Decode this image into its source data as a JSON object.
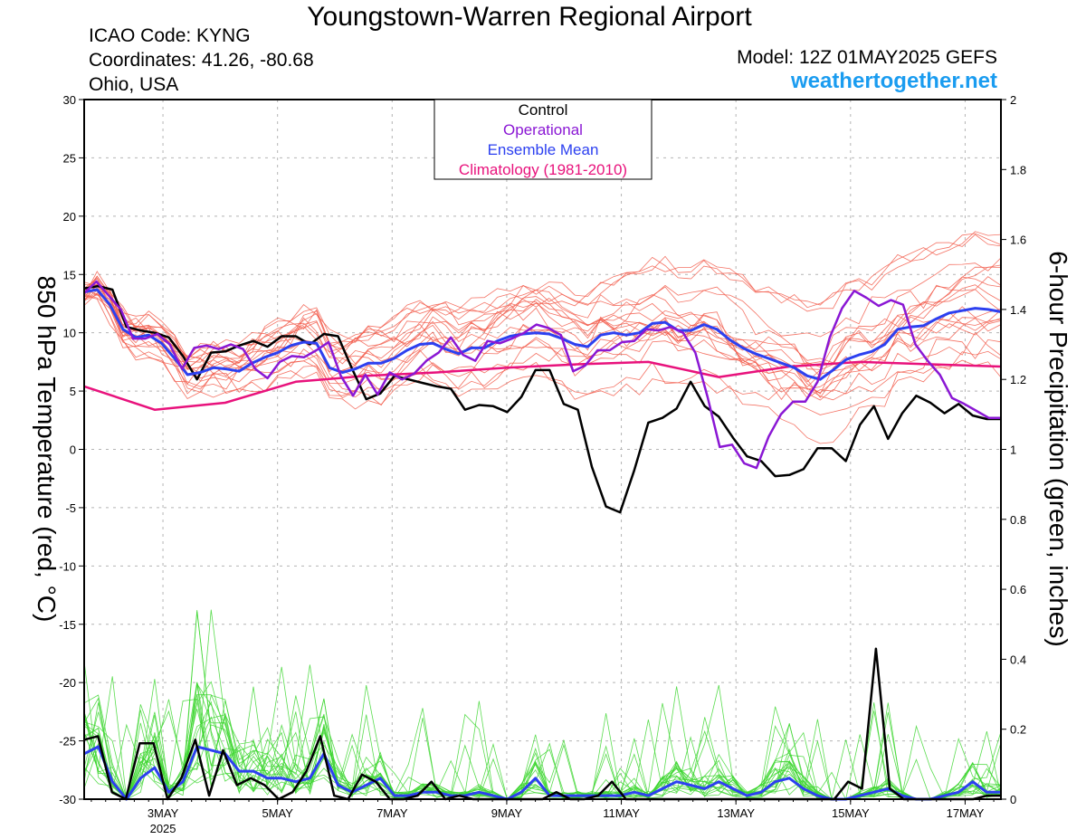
{
  "header": {
    "title": "Youngstown-Warren Regional Airport",
    "icao": "ICAO Code: KYNG",
    "coordinates": "Coordinates: 41.26, -80.68",
    "region": "Ohio, USA",
    "model": "Model: 12Z 01MAY2025 GEFS",
    "website": "weathertogether.net"
  },
  "chart_data": {
    "type": "line",
    "ylabel_left": "850 hPa Temperature (red, °C)",
    "ylabel_right": "6-hour Precipitation (green, inches)",
    "y_left_range": [
      -30,
      30
    ],
    "y_right_range": [
      0,
      2
    ],
    "y_left_ticks": [
      "30",
      "25",
      "20",
      "15",
      "10",
      "5",
      "0",
      "-5",
      "-10",
      "-15",
      "-20",
      "-25",
      "-30"
    ],
    "y_right_ticks": [
      "2",
      "1.8",
      "1.6",
      "1.4",
      "1.2",
      "1",
      "0.8",
      "0.6",
      "0.4",
      "0.2",
      "0"
    ],
    "x_range": [
      1.625,
      17.625
    ],
    "x_ticks": [
      {
        "x": 3,
        "label": "3MAY",
        "sub": "2025"
      },
      {
        "x": 5,
        "label": "5MAY",
        "sub": ""
      },
      {
        "x": 7,
        "label": "7MAY",
        "sub": ""
      },
      {
        "x": 9,
        "label": "9MAY",
        "sub": ""
      },
      {
        "x": 11,
        "label": "11MAY",
        "sub": ""
      },
      {
        "x": 13,
        "label": "13MAY",
        "sub": ""
      },
      {
        "x": 15,
        "label": "15MAY",
        "sub": ""
      },
      {
        "x": 17,
        "label": "17MAY",
        "sub": ""
      }
    ],
    "legend": [
      {
        "label": "Control",
        "color": "#000000"
      },
      {
        "label": "Operational",
        "color": "#8a17d4"
      },
      {
        "label": "Ensemble Mean",
        "color": "#2c40f0"
      },
      {
        "label": "Climatology (1981-2010)",
        "color": "#e8127c"
      }
    ],
    "colors": {
      "control": "#000000",
      "operational": "#8a17d4",
      "mean": "#2c40f0",
      "climatology": "#e8127c",
      "members_temp": "#f25a4a",
      "members_precip": "#3dd630",
      "grid": "#b4b4b4"
    },
    "series": {
      "control_temp": {
        "name": "Control",
        "values": [
          13.8,
          14.0,
          13.7,
          10.5,
          10.2,
          10.0,
          9.6,
          8.0,
          6.0,
          8.3,
          8.4,
          8.9,
          9.3,
          8.8,
          9.7,
          9.7,
          9.0,
          9.9,
          9.7,
          6.9,
          4.3,
          4.8,
          6.3,
          6.0,
          5.7,
          5.4,
          5.2,
          3.4,
          3.8,
          3.7,
          3.2,
          4.5,
          6.8,
          6.8,
          3.9,
          3.4,
          -1.5,
          -4.9,
          -5.4,
          -1.8,
          2.3,
          2.7,
          3.5,
          5.8,
          3.7,
          2.8,
          1.0,
          -0.6,
          -1.0,
          -2.3,
          -2.2,
          -1.7,
          0.1,
          0.1,
          -1.0,
          2.1,
          3.7,
          0.9,
          3.1,
          4.6,
          4.0,
          3.1,
          3.9,
          2.9,
          2.6,
          2.6
        ]
      },
      "operational_temp": {
        "name": "Operational",
        "values": [
          13.4,
          14.4,
          13.2,
          12.0,
          9.5,
          9.5,
          9.9,
          9.0,
          6.9,
          8.7,
          8.9,
          8.6,
          9.0,
          8.6,
          6.9,
          6.1,
          7.5,
          8.0,
          7.9,
          8.5,
          9.2,
          6.3,
          4.6,
          6.4,
          4.7,
          6.6,
          6.0,
          6.5,
          7.6,
          8.3,
          9.6,
          8.1,
          7.6,
          9.3,
          9.1,
          9.5,
          10.0,
          10.7,
          10.4,
          9.8,
          6.7,
          7.2,
          8.5,
          8.5,
          9.2,
          9.3,
          10.3,
          10.2,
          10.5,
          10.0,
          8.3,
          4.5,
          0.2,
          0.4,
          -1.2,
          -1.6,
          1.1,
          3.0,
          4.1,
          4.1,
          5.8,
          9.6,
          12.1,
          13.6,
          13.0,
          12.3,
          12.8,
          12.4,
          9.0,
          7.6,
          6.4,
          4.4,
          3.9,
          3.3,
          2.7,
          2.7
        ]
      },
      "mean_temp": {
        "name": "Ensemble Mean",
        "values": [
          13.5,
          13.7,
          12.4,
          10.3,
          9.6,
          9.8,
          9.1,
          7.8,
          6.4,
          6.6,
          7.0,
          6.9,
          6.7,
          7.4,
          7.9,
          8.3,
          8.9,
          9.2,
          9.1,
          7.0,
          6.6,
          6.9,
          7.4,
          7.4,
          7.8,
          8.5,
          9.0,
          9.1,
          8.6,
          8.2,
          8.7,
          8.7,
          9.3,
          9.7,
          9.9,
          10.0,
          9.9,
          9.5,
          9.0,
          8.8,
          9.8,
          10.0,
          9.8,
          10.0,
          10.8,
          10.9,
          10.2,
          10.2,
          10.7,
          10.3,
          9.4,
          8.7,
          8.2,
          7.8,
          7.4,
          7.0,
          6.3,
          6.0,
          6.8,
          7.7,
          8.1,
          8.4,
          9.0,
          10.3,
          10.5,
          10.6,
          11.2,
          11.7,
          11.9,
          12.1,
          12.0,
          11.8
        ]
      },
      "climatology_temp": {
        "name": "Climatology (1981-2010)",
        "values": [
          5.4,
          3.4,
          4.0,
          5.8,
          6.3,
          6.6,
          7.0,
          7.3,
          7.5,
          6.2,
          7.1,
          7.5,
          7.3,
          7.1
        ]
      },
      "control_precip": {
        "name": "Control",
        "values": [
          0.17,
          0.18,
          0.02,
          0,
          0.16,
          0.16,
          0,
          0.06,
          0.17,
          0.01,
          0.14,
          0.04,
          0.06,
          0.04,
          0,
          0.02,
          0.08,
          0.18,
          0.01,
          0,
          0.07,
          0.05,
          0,
          0,
          0.01,
          0.05,
          0,
          0.01,
          0,
          0,
          0,
          0,
          0,
          0,
          0.02,
          0,
          0,
          0.01,
          0.05,
          0,
          0,
          0,
          0,
          0,
          0,
          0,
          0,
          0,
          0,
          0,
          0,
          0,
          0,
          0,
          0,
          0.05,
          0.03,
          0.43,
          0.03,
          0,
          0,
          0,
          0,
          0,
          0,
          0.01,
          0.01
        ]
      },
      "mean_precip": {
        "name": "Ensemble Mean",
        "values": [
          0.13,
          0.15,
          0.05,
          0,
          0.06,
          0.09,
          0.02,
          0.05,
          0.15,
          0.14,
          0.13,
          0.08,
          0.08,
          0.06,
          0.06,
          0.05,
          0.06,
          0.13,
          0.04,
          0.02,
          0.04,
          0.06,
          0.01,
          0.01,
          0.02,
          0.02,
          0.01,
          0.01,
          0.02,
          0.01,
          0,
          0.02,
          0.06,
          0.01,
          0.01,
          0.01,
          0.01,
          0.01,
          0.01,
          0.02,
          0.01,
          0.03,
          0.05,
          0.04,
          0.03,
          0.05,
          0.03,
          0.01,
          0.02,
          0.05,
          0.06,
          0.03,
          0.01,
          0,
          0,
          0.01,
          0.02,
          0.03,
          0.01,
          0,
          0,
          0.01,
          0.02,
          0.05,
          0.02,
          0.02
        ]
      }
    }
  }
}
